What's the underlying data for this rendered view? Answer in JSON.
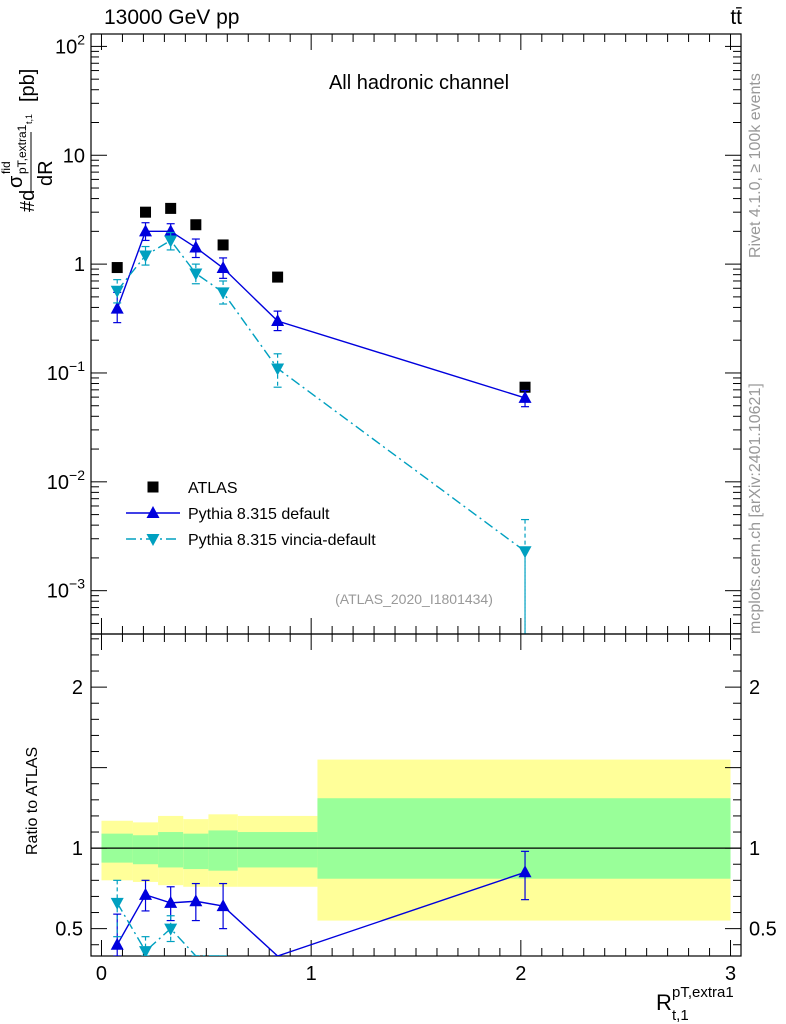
{
  "header": {
    "energy_label": "13000 GeV pp",
    "process_label": "tt̄"
  },
  "side": {
    "rivet_label": "Rivet 4.1.0, ≥ 100k events",
    "mcplots_label": "mcplots.cern.ch [arXiv:2401.10621]"
  },
  "chart_data": [
    {
      "type": "scatter",
      "panel": "main",
      "title": "All hadronic channel",
      "analysis_label": "(ATLAS_2020_I1801434)",
      "ylabel": "#dσ^fid_{pT,extra1}_{t,1} / dR [pb]",
      "ylabel_parts": {
        "num": "#d",
        "sigma": "σ",
        "sup": "fid",
        "sub": "pT,extra1",
        "subsub": "t,1",
        "den": "dR",
        "unit": "[pb]"
      },
      "yscale": "log",
      "ylim": [
        0.0004,
        130
      ],
      "xlim": [
        -0.05,
        3.05
      ],
      "y_ticks": [
        {
          "value": 100,
          "base": "10",
          "exp": "2"
        },
        {
          "value": 10,
          "base": "10",
          "exp": ""
        },
        {
          "value": 1,
          "base": "1",
          "exp": ""
        },
        {
          "value": 0.1,
          "base": "10",
          "exp": "−1"
        },
        {
          "value": 0.01,
          "base": "10",
          "exp": "−2"
        },
        {
          "value": 0.001,
          "base": "10",
          "exp": "−3"
        }
      ],
      "legend_position": "bottom-left",
      "series": [
        {
          "name": "ATLAS",
          "style": "data",
          "color": "#000000",
          "marker": "square",
          "x": [
            0.075,
            0.21,
            0.33,
            0.45,
            0.58,
            0.84,
            2.02
          ],
          "y": [
            0.93,
            3.0,
            3.25,
            2.3,
            1.5,
            0.76,
            0.074
          ]
        },
        {
          "name": "Pythia 8.315 default",
          "style": "solid",
          "color": "#0000dd",
          "marker": "triangle-up",
          "x": [
            0.075,
            0.21,
            0.33,
            0.45,
            0.58,
            0.84,
            2.02
          ],
          "y": [
            0.39,
            2.0,
            2.0,
            1.42,
            0.92,
            0.3,
            0.059
          ],
          "err_low": [
            0.29,
            1.65,
            1.7,
            1.15,
            0.74,
            0.245,
            0.049
          ],
          "err_high": [
            0.55,
            2.4,
            2.35,
            1.7,
            1.14,
            0.37,
            0.069
          ]
        },
        {
          "name": "Pythia 8.315 vincia-default",
          "style": "dashdot",
          "color": "#00a0c0",
          "marker": "triangle-down",
          "x": [
            0.075,
            0.21,
            0.33,
            0.45,
            0.58,
            0.84,
            2.02
          ],
          "y": [
            0.57,
            1.2,
            1.65,
            0.82,
            0.55,
            0.11,
            0.0023
          ],
          "err_low": [
            0.44,
            0.98,
            1.35,
            0.66,
            0.43,
            0.074,
            0.0004
          ],
          "err_high": [
            0.72,
            1.45,
            1.95,
            1.0,
            0.7,
            0.15,
            0.0045
          ]
        }
      ]
    },
    {
      "type": "line",
      "panel": "ratio",
      "ylabel": "Ratio to ATLAS",
      "xlabel": "R^{pT,extra1}_{t,1}",
      "xlabel_parts": {
        "base": "R",
        "sup": "pT,extra1",
        "sub": "t,1"
      },
      "ylim": [
        0.33,
        2.33
      ],
      "xlim": [
        -0.05,
        3.05
      ],
      "y_ticks": [
        0.5,
        1,
        2
      ],
      "x_ticks": [
        0,
        1,
        2,
        3
      ],
      "reference_line": 1,
      "bands": {
        "edges": [
          0.0,
          0.15,
          0.27,
          0.39,
          0.51,
          0.65,
          1.03,
          3.0
        ],
        "yellow_low": [
          0.8,
          0.79,
          0.77,
          0.76,
          0.76,
          0.76,
          0.55
        ],
        "yellow_high": [
          1.17,
          1.16,
          1.2,
          1.18,
          1.21,
          1.2,
          1.55
        ],
        "green_low": [
          0.91,
          0.9,
          0.88,
          0.87,
          0.86,
          0.88,
          0.81
        ],
        "green_high": [
          1.09,
          1.08,
          1.1,
          1.09,
          1.11,
          1.1,
          1.31
        ],
        "yellow_color": "#ffff99",
        "green_color": "#99ff99"
      },
      "series": [
        {
          "name": "Pythia 8.315 default",
          "color": "#0000dd",
          "marker": "triangle-up",
          "x": [
            0.075,
            0.21,
            0.33,
            0.45,
            0.58,
            0.84,
            2.02
          ],
          "y": [
            0.4,
            0.71,
            0.66,
            0.67,
            0.64,
            0.33,
            0.85
          ],
          "err_low": [
            0.33,
            0.61,
            0.55,
            0.55,
            0.5,
            0.33,
            0.68
          ],
          "err_high": [
            0.59,
            0.8,
            0.76,
            0.78,
            0.78,
            0.33,
            0.98
          ]
        },
        {
          "name": "Pythia 8.315 vincia-default",
          "color": "#00a0c0",
          "marker": "triangle-down",
          "x": [
            0.075,
            0.21,
            0.33,
            0.45,
            0.58
          ],
          "y": [
            0.66,
            0.36,
            0.5,
            0.33,
            0.33
          ],
          "err_low": [
            0.45,
            0.33,
            0.42,
            0.33,
            0.33
          ],
          "err_high": [
            0.8,
            0.45,
            0.58,
            0.33,
            0.33
          ]
        }
      ]
    }
  ]
}
